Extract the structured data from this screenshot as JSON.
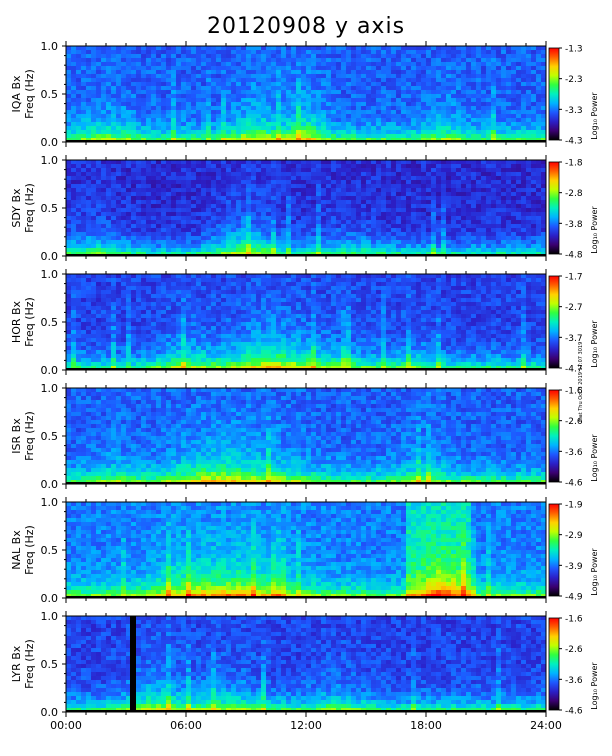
{
  "title": "20120908 y axis",
  "side_note": "mat Thu Oct 3 2019 17:07 3019",
  "x_axis": {
    "tick_labels": [
      "00:00",
      "06:00",
      "12:00",
      "18:00",
      "24:00"
    ],
    "range_hours": [
      0,
      24
    ]
  },
  "colorbar_label": "Log₁₀ Power",
  "colormap": [
    "#000000",
    "#3a0070",
    "#2b20c8",
    "#1e58ff",
    "#00b4ff",
    "#00f0c0",
    "#30ff40",
    "#c0ff00",
    "#ffd000",
    "#ff6000",
    "#ff0000"
  ],
  "chart_data": [
    {
      "type": "heatmap",
      "station": "IQA Bx",
      "ylabel": "Freq (Hz)",
      "ylim": [
        0.0,
        1.0
      ],
      "yticks": [
        "1.0",
        "0.5",
        "0.0"
      ],
      "colorbar_ticks": [
        "-1.3",
        "-2.3",
        "-3.3",
        "-4.3"
      ],
      "gap_hours": []
    },
    {
      "type": "heatmap",
      "station": "SDY Bx",
      "ylabel": "Freq (Hz)",
      "ylim": [
        0.0,
        1.0
      ],
      "yticks": [
        "1.0",
        "0.5",
        "0.0"
      ],
      "colorbar_ticks": [
        "-1.8",
        "-2.8",
        "-3.8",
        "-4.8"
      ],
      "gap_hours": []
    },
    {
      "type": "heatmap",
      "station": "HOR Bx",
      "ylabel": "Freq (Hz)",
      "ylim": [
        0.0,
        1.0
      ],
      "yticks": [
        "1.0",
        "0.5",
        "0.0"
      ],
      "colorbar_ticks": [
        "-1.7",
        "-2.7",
        "-3.7",
        "-4.7"
      ],
      "gap_hours": []
    },
    {
      "type": "heatmap",
      "station": "ISR Bx",
      "ylabel": "Freq (Hz)",
      "ylim": [
        0.0,
        1.0
      ],
      "yticks": [
        "1.0",
        "0.5",
        "0.0"
      ],
      "colorbar_ticks": [
        "-1.6",
        "-2.6",
        "-3.6",
        "-4.6"
      ],
      "gap_hours": []
    },
    {
      "type": "heatmap",
      "station": "NAL Bx",
      "ylabel": "Freq (Hz)",
      "ylim": [
        0.0,
        1.0
      ],
      "yticks": [
        "1.0",
        "0.5",
        "0.0"
      ],
      "colorbar_ticks": [
        "-1.9",
        "-2.9",
        "-3.9",
        "-4.9"
      ],
      "gap_hours": []
    },
    {
      "type": "heatmap",
      "station": "LYR Bx",
      "ylabel": "Freq (Hz)",
      "ylim": [
        0.0,
        1.0
      ],
      "yticks": [
        "1.0",
        "0.5",
        "0.0"
      ],
      "colorbar_ticks": [
        "-1.6",
        "-2.6",
        "-3.6",
        "-4.6"
      ],
      "gap_hours": [
        [
          3.2,
          3.5
        ]
      ]
    }
  ]
}
